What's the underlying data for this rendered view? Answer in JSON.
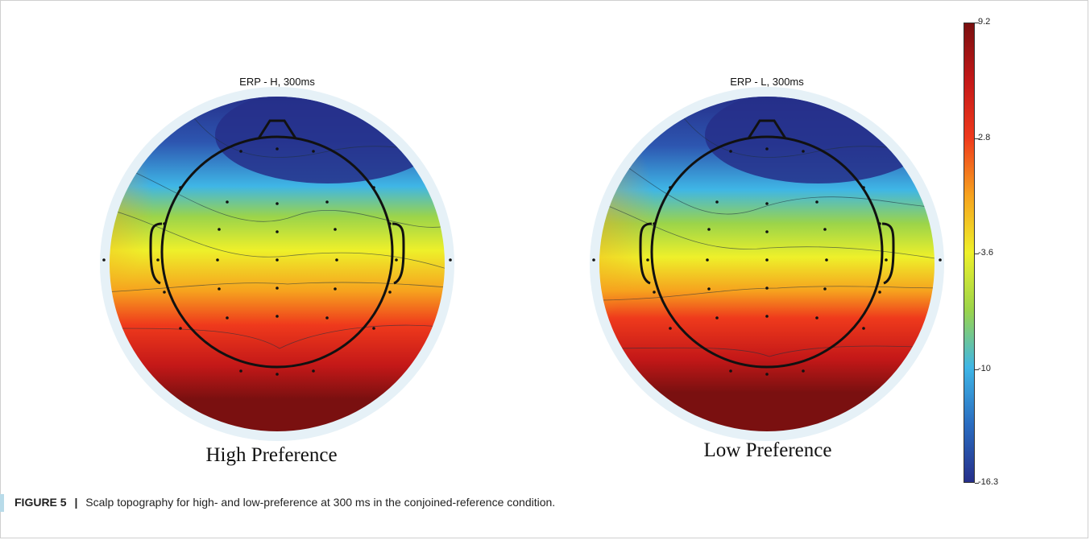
{
  "figure": {
    "caption_label": "FIGURE 5",
    "caption_separator": "|",
    "caption_text": "Scalp topography for high- and low-preference at 300 ms in the conjoined-reference condition."
  },
  "chart_data": [
    {
      "type": "heatmap",
      "title": "ERP - H, 300ms",
      "panel_label": "High Preference",
      "colorbar": {
        "min": -16.3,
        "max": 9.2,
        "ticks": [
          9.2,
          2.8,
          -3.6,
          -10,
          -16.3
        ]
      }
    },
    {
      "type": "heatmap",
      "title": "ERP - L, 300ms",
      "panel_label": "Low Preference",
      "colorbar": {
        "min": -16.3,
        "max": 9.2,
        "ticks": [
          9.2,
          2.8,
          -3.6,
          -10,
          -16.3
        ]
      }
    }
  ],
  "colorbar": {
    "tick_labels": [
      "9.2",
      "2.8",
      "-3.6",
      "-10",
      "-16.3"
    ],
    "colors": [
      "#7a1010",
      "#c41818",
      "#ef3a1c",
      "#f6a21e",
      "#eef02a",
      "#9bd44a",
      "#3fb6e6",
      "#2a6cc0",
      "#262f8a"
    ]
  }
}
